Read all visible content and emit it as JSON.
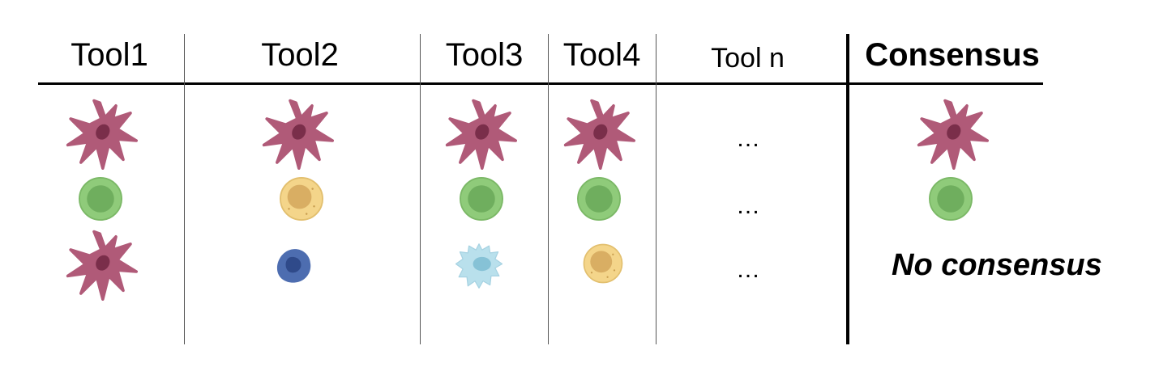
{
  "headers": {
    "tool1": "Tool1",
    "tool2": "Tool2",
    "tool3": "Tool3",
    "tool4": "Tool4",
    "tooln": "Tool n",
    "consensus": "Consensus"
  },
  "ellipsis": "…",
  "no_consensus": "No consensus",
  "rows": [
    {
      "tool1": "stellate-cell-icon",
      "tool2": "stellate-cell-icon",
      "tool3": "stellate-cell-icon",
      "tool4": "stellate-cell-icon",
      "consensus": "stellate-cell-icon"
    },
    {
      "tool1": "green-round-cell-icon",
      "tool2": "yellow-round-cell-icon",
      "tool3": "green-round-cell-icon",
      "tool4": "green-round-cell-icon",
      "consensus": "green-round-cell-icon"
    },
    {
      "tool1": "stellate-cell-icon",
      "tool2": "blue-lobed-cell-icon",
      "tool3": "light-blue-spiky-cell-icon",
      "tool4": "yellow-round-cell-icon",
      "consensus": ""
    }
  ],
  "colors": {
    "stellate": "#b05a78",
    "stellate_nucleus": "#7a2e4a",
    "green": "#8fcb7a",
    "green_nucleus": "#6fae5e",
    "yellow": "#f4d58a",
    "yellow_nucleus": "#d9ae63",
    "blue": "#4d6db0",
    "blue_nucleus": "#2f4a8a",
    "lightblue": "#b9e0ec",
    "lightblue_nucleus": "#86c2d6"
  }
}
